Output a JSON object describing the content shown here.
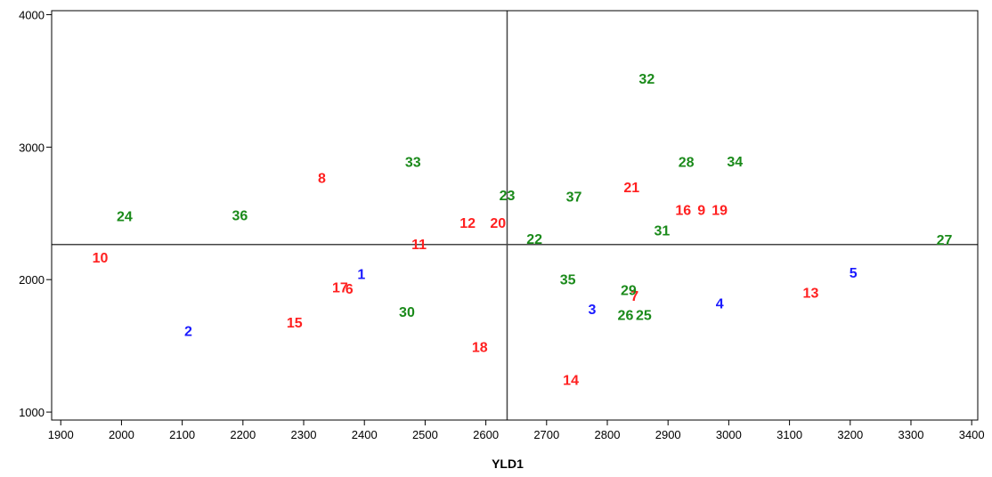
{
  "chart_data": {
    "type": "scatter",
    "title": "",
    "xlabel": "YLD1",
    "ylabel": "",
    "xlim": [
      1885,
      3410
    ],
    "ylim": [
      940,
      4030
    ],
    "grid": false,
    "x_ticks": [
      1900,
      2000,
      2100,
      2200,
      2300,
      2400,
      2500,
      2600,
      2700,
      2800,
      2900,
      3000,
      3100,
      3200,
      3300,
      3400
    ],
    "y_ticks": [
      1000,
      2000,
      3000,
      4000
    ],
    "reference_lines": {
      "x": 2635,
      "y": 2265
    },
    "colors": {
      "blue": "#1a1aff",
      "red": "#ff2020",
      "green": "#1a8a1a"
    },
    "points": [
      {
        "label": "1",
        "x": 2395,
        "y": 2045,
        "color": "blue"
      },
      {
        "label": "2",
        "x": 2110,
        "y": 1615,
        "color": "blue"
      },
      {
        "label": "3",
        "x": 2775,
        "y": 1780,
        "color": "blue"
      },
      {
        "label": "4",
        "x": 2985,
        "y": 1825,
        "color": "blue"
      },
      {
        "label": "5",
        "x": 3205,
        "y": 2055,
        "color": "blue"
      },
      {
        "label": "6",
        "x": 2375,
        "y": 1935,
        "color": "red"
      },
      {
        "label": "7",
        "x": 2845,
        "y": 1880,
        "color": "red"
      },
      {
        "label": "8",
        "x": 2330,
        "y": 2770,
        "color": "red"
      },
      {
        "label": "9",
        "x": 2955,
        "y": 2530,
        "color": "red"
      },
      {
        "label": "10",
        "x": 1965,
        "y": 2170,
        "color": "red"
      },
      {
        "label": "11",
        "x": 2490,
        "y": 2270,
        "color": "red"
      },
      {
        "label": "12",
        "x": 2570,
        "y": 2430,
        "color": "red"
      },
      {
        "label": "13",
        "x": 3135,
        "y": 1905,
        "color": "red"
      },
      {
        "label": "14",
        "x": 2740,
        "y": 1245,
        "color": "red"
      },
      {
        "label": "15",
        "x": 2285,
        "y": 1680,
        "color": "red"
      },
      {
        "label": "16",
        "x": 2925,
        "y": 2530,
        "color": "red"
      },
      {
        "label": "17",
        "x": 2360,
        "y": 1945,
        "color": "red"
      },
      {
        "label": "18",
        "x": 2590,
        "y": 1495,
        "color": "red"
      },
      {
        "label": "19",
        "x": 2985,
        "y": 2530,
        "color": "red"
      },
      {
        "label": "20",
        "x": 2620,
        "y": 2430,
        "color": "red"
      },
      {
        "label": "21",
        "x": 2840,
        "y": 2700,
        "color": "red"
      },
      {
        "label": "22",
        "x": 2680,
        "y": 2310,
        "color": "green"
      },
      {
        "label": "23",
        "x": 2635,
        "y": 2640,
        "color": "green"
      },
      {
        "label": "24",
        "x": 2005,
        "y": 2480,
        "color": "green"
      },
      {
        "label": "25",
        "x": 2860,
        "y": 1735,
        "color": "green"
      },
      {
        "label": "26",
        "x": 2830,
        "y": 1735,
        "color": "green"
      },
      {
        "label": "27",
        "x": 3355,
        "y": 2305,
        "color": "green"
      },
      {
        "label": "28",
        "x": 2930,
        "y": 2890,
        "color": "green"
      },
      {
        "label": "29",
        "x": 2835,
        "y": 1925,
        "color": "green"
      },
      {
        "label": "30",
        "x": 2470,
        "y": 1760,
        "color": "green"
      },
      {
        "label": "31",
        "x": 2890,
        "y": 2375,
        "color": "green"
      },
      {
        "label": "32",
        "x": 2865,
        "y": 3520,
        "color": "green"
      },
      {
        "label": "33",
        "x": 2480,
        "y": 2890,
        "color": "green"
      },
      {
        "label": "34",
        "x": 3010,
        "y": 2895,
        "color": "green"
      },
      {
        "label": "35",
        "x": 2735,
        "y": 2005,
        "color": "green"
      },
      {
        "label": "36",
        "x": 2195,
        "y": 2490,
        "color": "green"
      },
      {
        "label": "37",
        "x": 2745,
        "y": 2630,
        "color": "green"
      }
    ]
  }
}
